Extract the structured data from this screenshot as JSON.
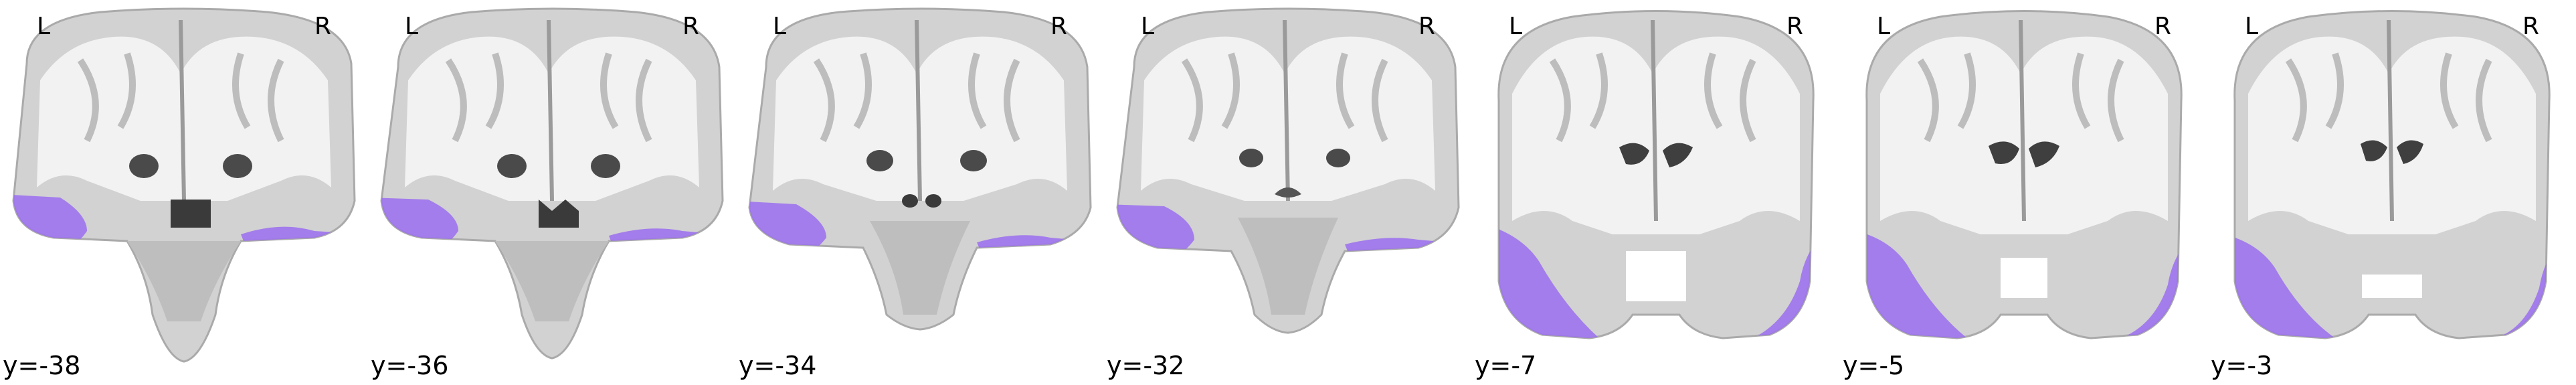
{
  "figure": {
    "orientation": {
      "left_label": "L",
      "right_label": "R"
    },
    "overlay_color": "#9b6ff0",
    "slices": [
      {
        "coord_label": "y=-38"
      },
      {
        "coord_label": "y=-36"
      },
      {
        "coord_label": "y=-34"
      },
      {
        "coord_label": "y=-32"
      },
      {
        "coord_label": "y=-7"
      },
      {
        "coord_label": "y=-5"
      },
      {
        "coord_label": "y=-3"
      }
    ]
  }
}
